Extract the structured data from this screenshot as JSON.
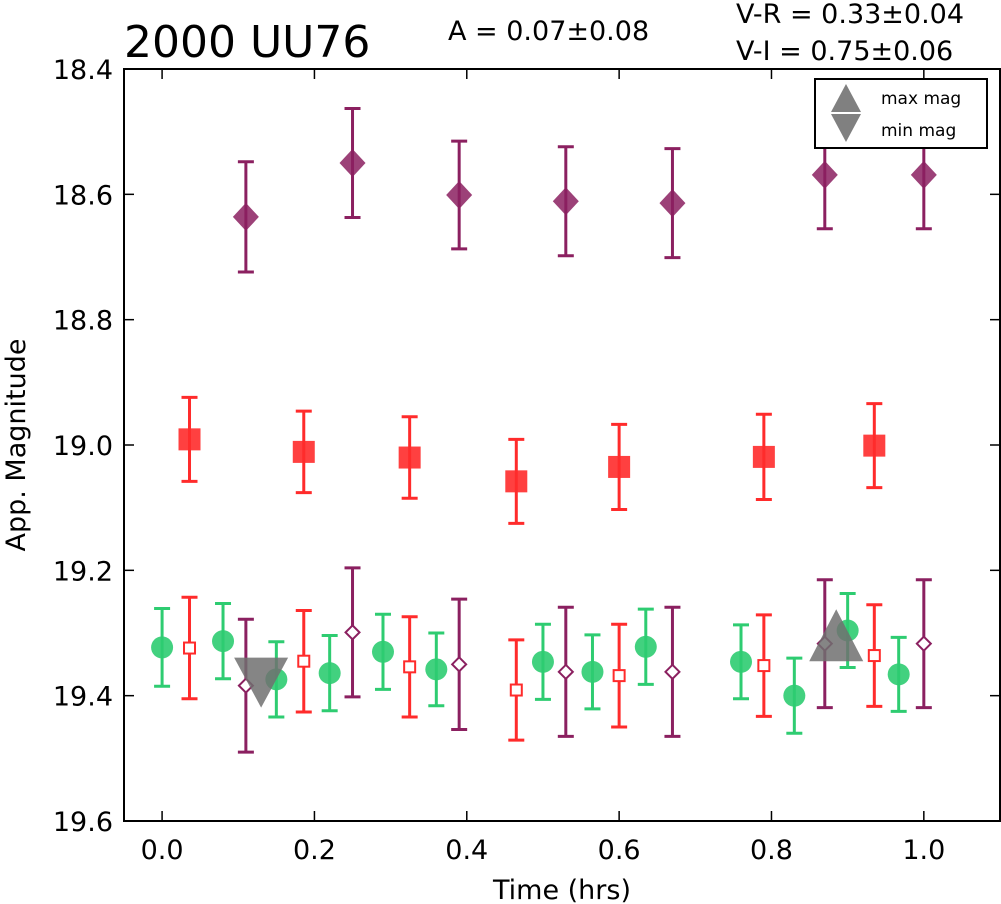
{
  "chart_data": {
    "type": "scatter",
    "title": "2000 UU76",
    "annotations": {
      "amplitude": "A  = 0.07±0.08",
      "v_r": "V-R = 0.33±0.04",
      "v_i": "V-I  = 0.75±0.06"
    },
    "xlabel": "Time (hrs)",
    "ylabel": "App. Magnitude",
    "xlim": [
      -0.05,
      1.1
    ],
    "ylim": [
      19.6,
      18.4
    ],
    "y_inverted": true,
    "xticks": [
      "0.0",
      "0.2",
      "0.4",
      "0.6",
      "0.8",
      "1.0"
    ],
    "yticks": [
      "18.4",
      "18.6",
      "18.8",
      "19.0",
      "19.2",
      "19.4",
      "19.6"
    ],
    "grid": false,
    "legend": {
      "position": "top-right",
      "entries": [
        {
          "label": "max mag",
          "marker": "triangle-up",
          "color": "#808080"
        },
        {
          "label": "min mag",
          "marker": "triangle-down",
          "color": "#808080"
        }
      ]
    },
    "series": [
      {
        "marker": "diamond-filled",
        "color": "#8b2060",
        "x": [
          0.11,
          0.25,
          0.39,
          0.53,
          0.67,
          0.87,
          1.0
        ],
        "y": [
          18.636,
          18.55,
          18.601,
          18.611,
          18.614,
          18.569,
          18.569
        ],
        "err": [
          0.088,
          0.087,
          0.086,
          0.087,
          0.087,
          0.086,
          0.086
        ]
      },
      {
        "marker": "square-filled",
        "color": "#ff2b2b",
        "x": [
          0.036,
          0.186,
          0.325,
          0.465,
          0.6,
          0.79,
          0.935
        ],
        "y": [
          18.991,
          19.011,
          19.02,
          19.058,
          19.035,
          19.019,
          19.001
        ],
        "err": [
          0.067,
          0.065,
          0.065,
          0.067,
          0.068,
          0.068,
          0.067
        ]
      },
      {
        "marker": "circle-filled",
        "color": "#2ecc71",
        "x": [
          0.0,
          0.08,
          0.15,
          0.22,
          0.29,
          0.36,
          0.5,
          0.565,
          0.635,
          0.76,
          0.83,
          0.9,
          0.967
        ],
        "y": [
          19.323,
          19.313,
          19.374,
          19.364,
          19.33,
          19.358,
          19.346,
          19.362,
          19.322,
          19.346,
          19.4,
          19.296,
          19.366
        ],
        "err": [
          0.062,
          0.06,
          0.06,
          0.06,
          0.06,
          0.058,
          0.06,
          0.059,
          0.06,
          0.059,
          0.06,
          0.059,
          0.059
        ]
      },
      {
        "marker": "square-open",
        "color": "#ff2b2b",
        "x": [
          0.036,
          0.186,
          0.325,
          0.465,
          0.6,
          0.79,
          0.935
        ],
        "y": [
          19.324,
          19.345,
          19.354,
          19.391,
          19.368,
          19.352,
          19.336
        ],
        "err": [
          0.081,
          0.081,
          0.08,
          0.08,
          0.082,
          0.081,
          0.081
        ]
      },
      {
        "marker": "diamond-open",
        "color": "#8b2060",
        "x": [
          0.11,
          0.25,
          0.39,
          0.53,
          0.67,
          0.87,
          1.0
        ],
        "y": [
          19.384,
          19.299,
          19.35,
          19.362,
          19.362,
          19.317,
          19.317
        ],
        "err": [
          0.106,
          0.103,
          0.104,
          0.103,
          0.103,
          0.102,
          0.102
        ]
      },
      {
        "marker": "triangle-up",
        "color": "#707070",
        "x": [
          0.885
        ],
        "y": [
          19.31
        ]
      },
      {
        "marker": "triangle-down",
        "color": "#707070",
        "x": [
          0.13
        ],
        "y": [
          19.36
        ]
      }
    ]
  }
}
